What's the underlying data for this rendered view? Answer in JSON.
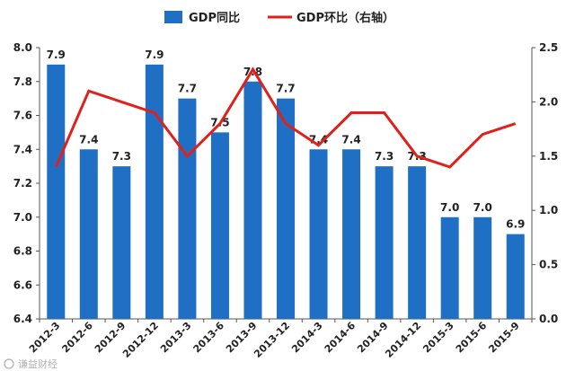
{
  "chart_data": {
    "type": "bar+line",
    "categories": [
      "2012-3",
      "2012-6",
      "2012-9",
      "2012-12",
      "2013-3",
      "2013-6",
      "2013-9",
      "2013-12",
      "2014-3",
      "2014-6",
      "2014-9",
      "2014-12",
      "2015-3",
      "2015-6",
      "2015-9"
    ],
    "series": [
      {
        "name": "GDP同比",
        "type": "bar",
        "axis": "left",
        "color": "#1f6fc5",
        "values": [
          7.9,
          7.4,
          7.3,
          7.9,
          7.7,
          7.5,
          7.8,
          7.7,
          7.4,
          7.4,
          7.3,
          7.3,
          7.0,
          7.0,
          6.9
        ],
        "labels": [
          "7.9",
          "7.4",
          "7.3",
          "7.9",
          "7.7",
          "7.5",
          "7.8",
          "7.7",
          "7.4",
          "7.4",
          "7.3",
          "7.3",
          "7.0",
          "7.0",
          "6.9"
        ]
      },
      {
        "name": "GDP环比（右轴）",
        "type": "line",
        "axis": "right",
        "color": "#e0201b",
        "values": [
          1.4,
          2.1,
          2.0,
          1.9,
          1.5,
          1.8,
          2.3,
          1.8,
          1.6,
          1.9,
          1.9,
          1.5,
          1.4,
          1.7,
          1.8
        ]
      }
    ],
    "left_axis": {
      "min": 6.4,
      "max": 8.0,
      "step": 0.2,
      "tick_labels": [
        "6.4",
        "6.6",
        "6.8",
        "7.0",
        "7.2",
        "7.4",
        "7.6",
        "7.8",
        "8.0"
      ]
    },
    "right_axis": {
      "min": 0.0,
      "max": 2.5,
      "step": 0.5,
      "tick_labels": [
        "0.0",
        "0.5",
        "1.0",
        "1.5",
        "2.0",
        "2.5"
      ]
    },
    "legend_position": "top-center",
    "grid": false
  },
  "watermark": "谦益财经"
}
